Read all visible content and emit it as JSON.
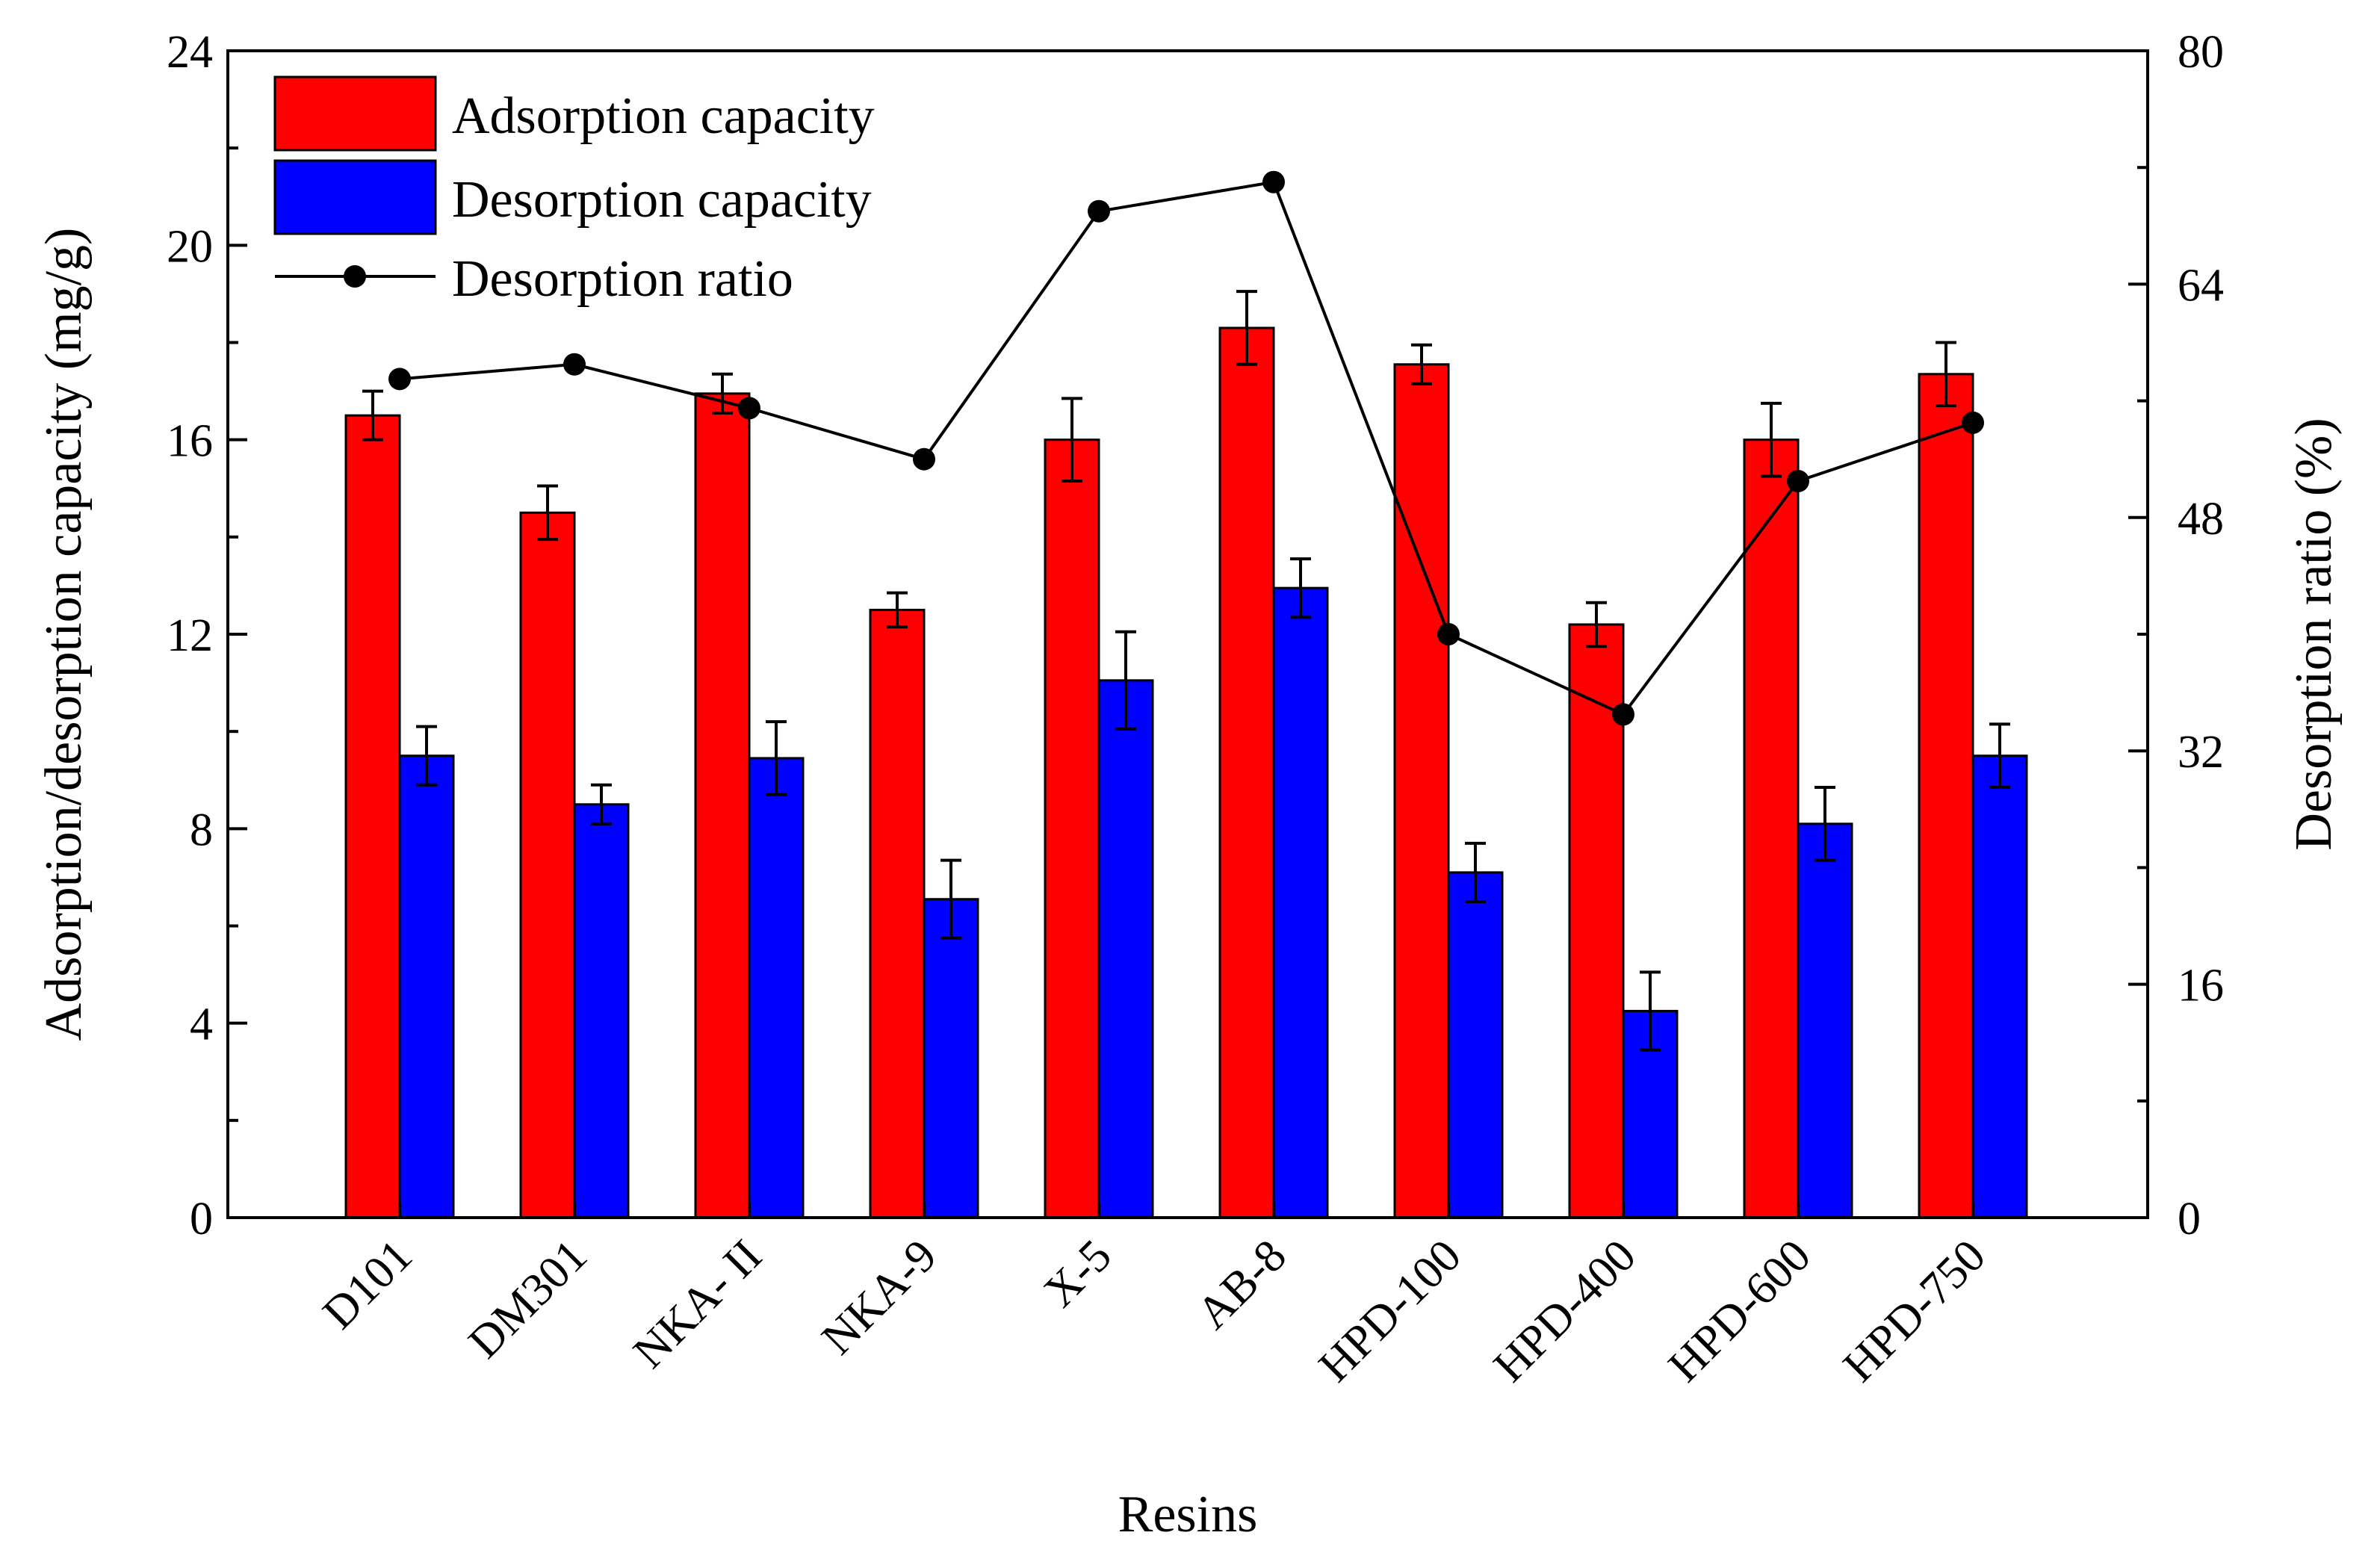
{
  "chart_data": {
    "type": "bar",
    "categories": [
      "D101",
      "DM301",
      "NKA- II",
      "NKA-9",
      "X-5",
      "AB-8",
      "HPD-100",
      "HPD-400",
      "HPD-600",
      "HPD-750"
    ],
    "series": [
      {
        "name": "Adsorption capacity",
        "axis": "left",
        "kind": "bar",
        "color": "#ff0000",
        "values": [
          16.5,
          14.5,
          16.95,
          12.5,
          16.0,
          18.3,
          17.55,
          12.2,
          16.0,
          17.35
        ],
        "errors": [
          0.5,
          0.55,
          0.4,
          0.35,
          0.85,
          0.75,
          0.4,
          0.45,
          0.75,
          0.65
        ]
      },
      {
        "name": "Desorption capacity",
        "axis": "left",
        "kind": "bar",
        "color": "#0000ff",
        "values": [
          9.5,
          8.5,
          9.45,
          6.55,
          11.05,
          12.95,
          7.1,
          4.25,
          8.1,
          9.5
        ],
        "errors": [
          0.6,
          0.4,
          0.75,
          0.8,
          1.0,
          0.6,
          0.6,
          0.8,
          0.75,
          0.65
        ]
      },
      {
        "name": "Desorption ratio",
        "axis": "right",
        "kind": "line",
        "color": "#000000",
        "values": [
          57.5,
          58.5,
          55.5,
          52.0,
          69.0,
          71.0,
          40.0,
          34.5,
          50.5,
          54.5
        ]
      }
    ],
    "title": "",
    "xlabel": "Resins",
    "ylabel": "Adsorption/desorption capacity (mg/g)",
    "ylabel_right": "Desorption ratio (%)",
    "ylim": [
      0,
      24
    ],
    "ylim_right": [
      0,
      80
    ],
    "yticks": [
      "0",
      "4",
      "8",
      "12",
      "16",
      "20",
      "24"
    ],
    "yticks_right": [
      "0",
      "16",
      "32",
      "48",
      "64",
      "80"
    ],
    "legend_position": "top-left",
    "grid": false
  }
}
